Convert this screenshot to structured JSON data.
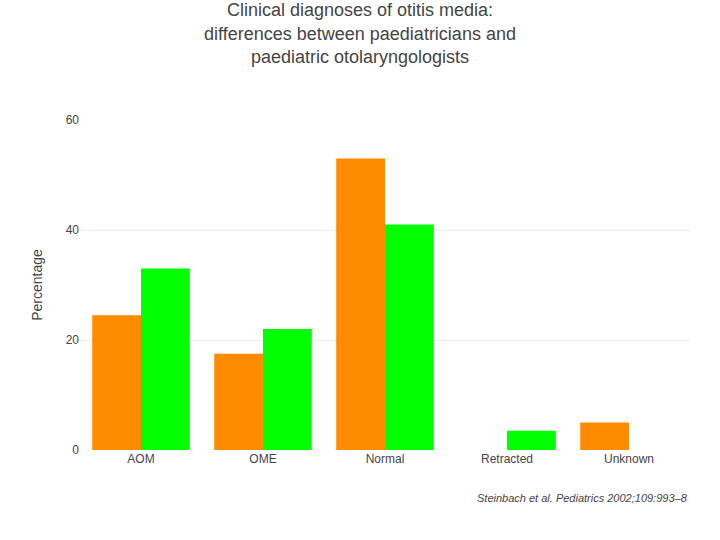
{
  "chart_data": {
    "type": "bar",
    "title": "Clinical diagnoses of otitis media:\ndifferences between paediatricians and\npaediatric otolaryngologists",
    "categories": [
      "AOM",
      "OME",
      "Normal",
      "Retracted",
      "Unknown"
    ],
    "series": [
      {
        "color": "#FF8C00",
        "values": [
          24.5,
          17.5,
          53.0,
          0.0,
          5.0
        ]
      },
      {
        "color": "#00FF00",
        "values": [
          33.0,
          22.0,
          41.0,
          3.5,
          0.0
        ]
      }
    ],
    "ylabel": "Percentage",
    "ylim": [
      0,
      60
    ],
    "yticks": [
      0,
      20,
      40,
      60
    ],
    "grid": true,
    "annotations": [
      "Steinbach et al. Pediatrics 2002;109:993–8"
    ]
  }
}
